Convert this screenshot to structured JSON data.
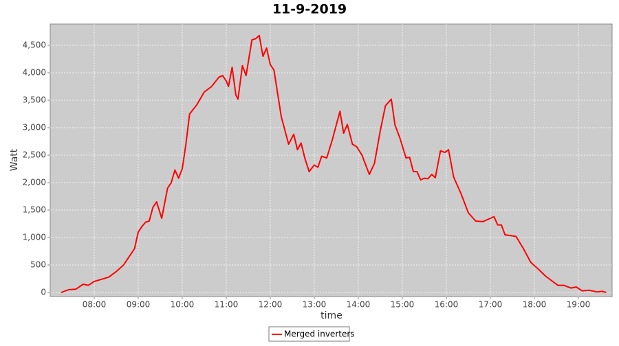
{
  "chart_data": {
    "type": "line",
    "title": "11-9-2019",
    "x_label": "time",
    "y_label": "Watt",
    "x": [
      "07:15",
      "07:25",
      "07:35",
      "07:45",
      "07:52",
      "08:00",
      "08:10",
      "08:20",
      "08:30",
      "08:40",
      "08:50",
      "08:55",
      "09:00",
      "09:05",
      "09:10",
      "09:15",
      "09:20",
      "09:25",
      "09:32",
      "09:40",
      "09:45",
      "09:50",
      "09:55",
      "10:00",
      "10:05",
      "10:10",
      "10:20",
      "10:30",
      "10:40",
      "10:50",
      "10:55",
      "11:00",
      "11:03",
      "11:08",
      "11:13",
      "11:16",
      "11:22",
      "11:27",
      "11:35",
      "11:40",
      "11:45",
      "11:50",
      "11:55",
      "12:00",
      "12:05",
      "12:15",
      "12:25",
      "12:32",
      "12:37",
      "12:42",
      "12:47",
      "12:53",
      "13:00",
      "13:05",
      "13:10",
      "13:17",
      "13:25",
      "13:35",
      "13:40",
      "13:45",
      "13:52",
      "13:58",
      "14:05",
      "14:15",
      "14:22",
      "14:30",
      "14:37",
      "14:45",
      "14:50",
      "14:57",
      "15:05",
      "15:10",
      "15:15",
      "15:20",
      "15:25",
      "15:30",
      "15:35",
      "15:40",
      "15:45",
      "15:52",
      "15:58",
      "16:03",
      "16:10",
      "16:20",
      "16:30",
      "16:40",
      "16:50",
      "17:00",
      "17:05",
      "17:10",
      "17:15",
      "17:20",
      "17:30",
      "17:35",
      "17:45",
      "17:55",
      "18:05",
      "18:15",
      "18:25",
      "18:32",
      "18:40",
      "18:50",
      "18:57",
      "19:05",
      "19:15",
      "19:25",
      "19:32",
      "19:38"
    ],
    "series": [
      {
        "name": "Merged inverters",
        "color": "#ff0000",
        "values": [
          0,
          50,
          60,
          150,
          130,
          200,
          240,
          280,
          380,
          500,
          700,
          800,
          1100,
          1200,
          1280,
          1300,
          1550,
          1650,
          1350,
          1900,
          2000,
          2230,
          2080,
          2250,
          2700,
          3250,
          3420,
          3650,
          3750,
          3920,
          3950,
          3850,
          3750,
          4100,
          3600,
          3520,
          4130,
          3950,
          4600,
          4620,
          4680,
          4300,
          4450,
          4150,
          4050,
          3200,
          2700,
          2880,
          2600,
          2720,
          2450,
          2200,
          2320,
          2280,
          2480,
          2450,
          2800,
          3300,
          2900,
          3060,
          2700,
          2650,
          2500,
          2150,
          2350,
          2950,
          3400,
          3520,
          3050,
          2800,
          2450,
          2460,
          2200,
          2200,
          2050,
          2080,
          2070,
          2150,
          2090,
          2580,
          2550,
          2600,
          2100,
          1800,
          1450,
          1300,
          1290,
          1350,
          1380,
          1230,
          1230,
          1050,
          1030,
          1020,
          800,
          550,
          430,
          300,
          200,
          130,
          130,
          80,
          100,
          30,
          40,
          10,
          20,
          0
        ]
      }
    ],
    "xlim": [
      "07:00",
      "19:46"
    ],
    "xticks": [
      "08:00",
      "09:00",
      "10:00",
      "11:00",
      "12:00",
      "13:00",
      "14:00",
      "15:00",
      "16:00",
      "17:00",
      "18:00",
      "19:00"
    ],
    "ylim": [
      -75,
      4888
    ],
    "yticks": [
      0,
      500,
      {
        "value": 1000,
        "label": "1,000"
      },
      {
        "value": 1500,
        "label": "1,500"
      },
      {
        "value": 2000,
        "label": "2,000"
      },
      {
        "value": 2500,
        "label": "2,500"
      },
      {
        "value": 3000,
        "label": "3,000"
      },
      {
        "value": 3500,
        "label": "3,500"
      },
      {
        "value": 4000,
        "label": "4,000"
      },
      {
        "value": 4500,
        "label": "4,500"
      }
    ],
    "grid": true,
    "legend": "bottom"
  }
}
